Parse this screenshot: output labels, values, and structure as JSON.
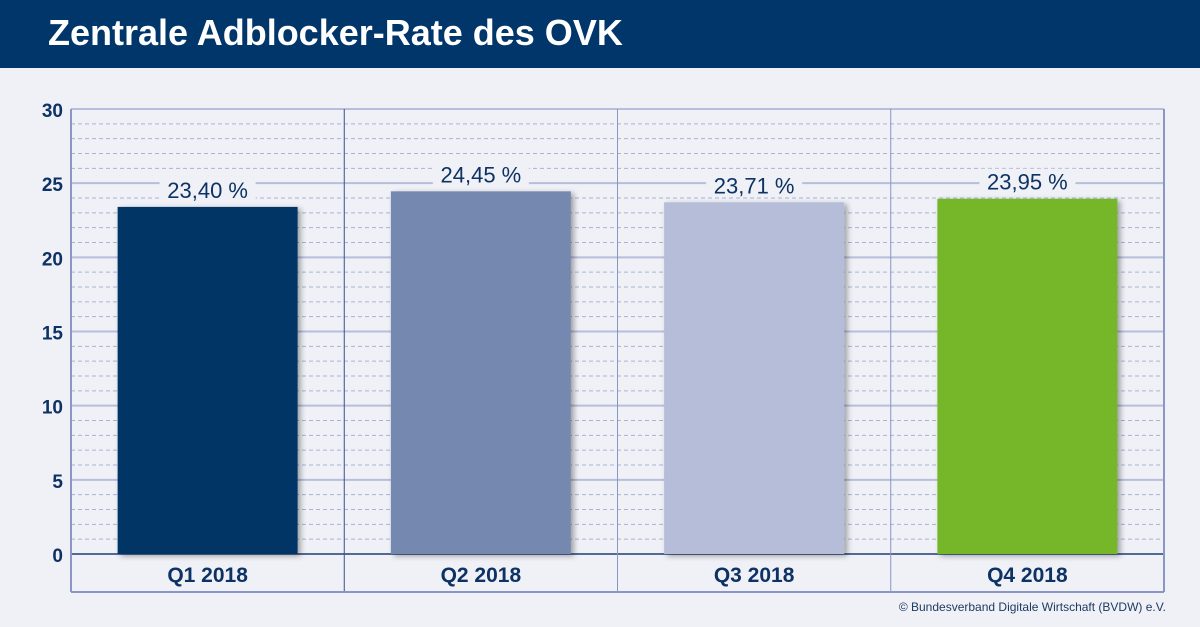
{
  "header": {
    "title": "Zentrale Adblocker-Rate des OVK"
  },
  "chart_data": {
    "type": "bar",
    "title": "Zentrale Adblocker-Rate des OVK",
    "categories": [
      "Q1 2018",
      "Q2 2018",
      "Q3 2018",
      "Q4 2018"
    ],
    "values": [
      23.4,
      24.45,
      23.71,
      23.95
    ],
    "data_labels": [
      "23,40 %",
      "24,45 %",
      "23,71 %",
      "23,95 %"
    ],
    "colors": [
      "#003565",
      "#7589b0",
      "#b5bdd8",
      "#76b72a"
    ],
    "yticks": [
      "0",
      "5",
      "10",
      "15",
      "20",
      "25",
      "30"
    ],
    "ylim": [
      0,
      30
    ],
    "grid": true,
    "xlabel": "",
    "ylabel": ""
  },
  "footer": {
    "credit": "© Bundesverband Digitale Wirtschaft (BVDW) e.V."
  }
}
